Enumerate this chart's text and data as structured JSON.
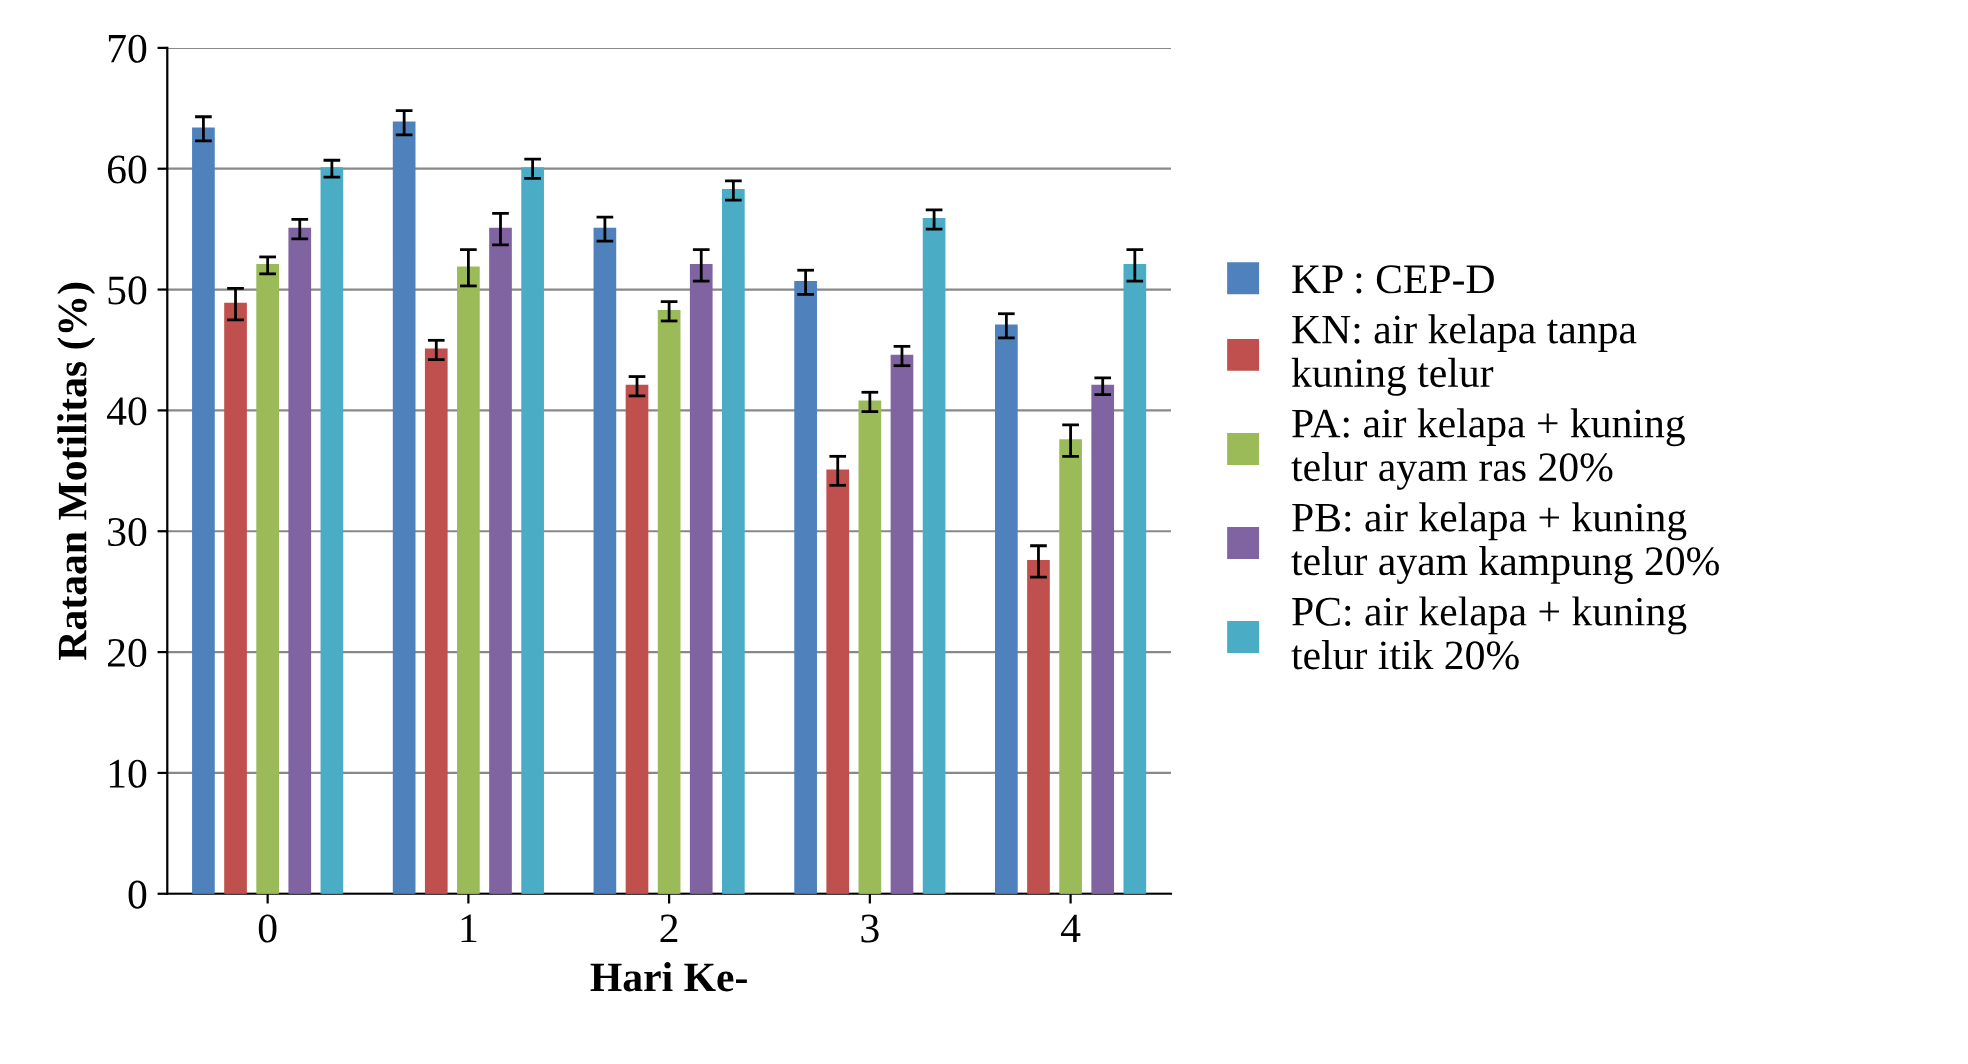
{
  "chart_data": {
    "type": "bar",
    "xlabel": "Hari Ke-",
    "ylabel": "Rataan Motilitas (%)",
    "categories": [
      "0",
      "1",
      "2",
      "3",
      "4"
    ],
    "series": [
      {
        "name": "KP : CEP-D",
        "color": "#4f81bd",
        "values": [
          63.3,
          63.8,
          55,
          50.6,
          47
        ],
        "errors": [
          1,
          1,
          1,
          1,
          1
        ]
      },
      {
        "name": "KN: air kelapa tanpa\nkuning telur",
        "color": "#c0504d",
        "values": [
          48.8,
          45,
          42,
          35,
          27.5
        ],
        "errors": [
          1.3,
          0.8,
          0.8,
          1.2,
          1.3
        ]
      },
      {
        "name": "PA: air kelapa + kuning\ntelur ayam ras 20%",
        "color": "#9bbb59",
        "values": [
          52,
          51.8,
          48.2,
          40.7,
          37.5
        ],
        "errors": [
          0.7,
          1.5,
          0.8,
          0.8,
          1.3
        ]
      },
      {
        "name": "PB: air kelapa + kuning\ntelur ayam kampung 20%",
        "color": "#8064a2",
        "values": [
          55,
          55,
          52,
          44.5,
          42
        ],
        "errors": [
          0.8,
          1.3,
          1.3,
          0.8,
          0.7
        ]
      },
      {
        "name": "PC: air kelapa + kuning\ntelur itik 20%",
        "color": "#4bacc6",
        "values": [
          60,
          60,
          58.2,
          55.8,
          52
        ],
        "errors": [
          0.7,
          0.8,
          0.8,
          0.8,
          1.3
        ]
      }
    ],
    "ylim": [
      0,
      70
    ],
    "yticks": [
      0,
      10,
      20,
      30,
      40,
      50,
      60,
      70
    ],
    "grid": "y",
    "legend": "right"
  }
}
